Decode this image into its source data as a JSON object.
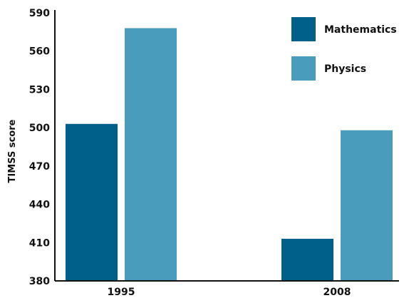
{
  "chart_data": {
    "type": "bar",
    "categories": [
      "1995",
      "2008"
    ],
    "series": [
      {
        "name": "Mathematics",
        "color": "#006089",
        "values": [
          503,
          413
        ]
      },
      {
        "name": "Physics",
        "color": "#4a9cbd",
        "values": [
          578,
          498
        ]
      }
    ],
    "ylabel": "TIMSS score",
    "xlabel": "",
    "ylim": [
      380,
      590
    ],
    "yticks": [
      380,
      410,
      440,
      470,
      500,
      530,
      560,
      590
    ],
    "legend_position": "top-right",
    "grid": false
  }
}
